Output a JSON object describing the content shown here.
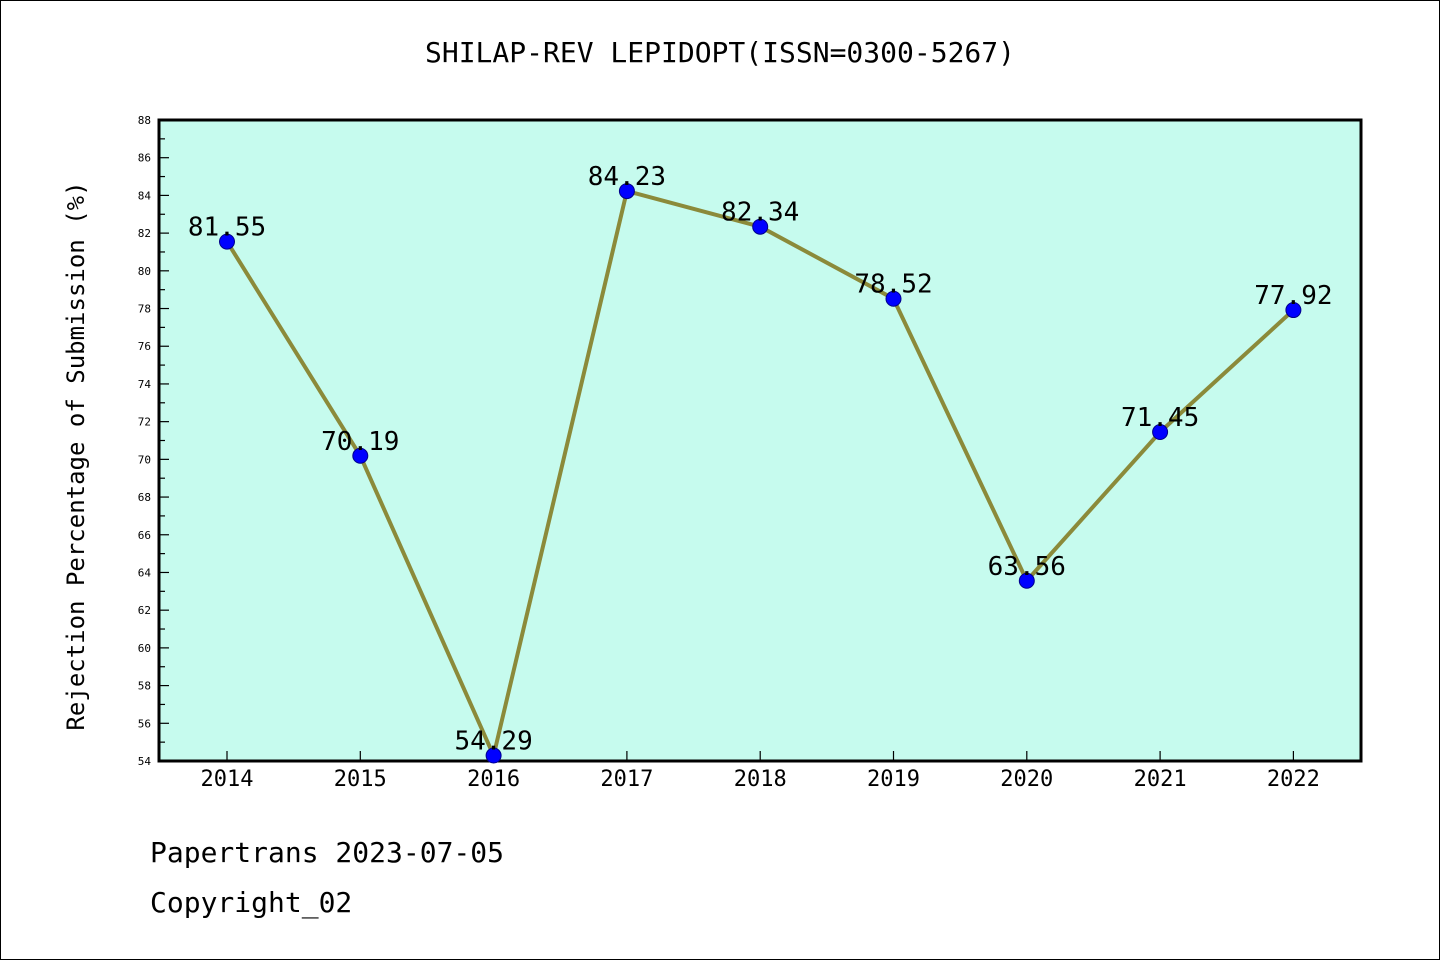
{
  "chart_data": {
    "type": "line",
    "title": "SHILAP-REV LEPIDOPT(ISSN=0300-5267)",
    "ylabel": "Rejection Percentage of Submission (%)",
    "xlabel": "",
    "categories": [
      "2014",
      "2015",
      "2016",
      "2017",
      "2018",
      "2019",
      "2020",
      "2021",
      "2022"
    ],
    "values": [
      81.55,
      70.19,
      54.29,
      84.23,
      82.34,
      78.52,
      63.56,
      71.45,
      77.92
    ],
    "labels": [
      "81.55",
      "70.19",
      "54.29",
      "84.23",
      "82.34",
      "78.52",
      "63.56",
      "71.45",
      "77.92"
    ],
    "ylim": [
      54,
      88
    ],
    "yticks": [
      54,
      56,
      58,
      60,
      62,
      64,
      66,
      68,
      70,
      72,
      74,
      76,
      78,
      80,
      82,
      84,
      86,
      88
    ],
    "grid": false,
    "colors": {
      "plot_bg": "#c6fbee",
      "line": "#8b8a3a",
      "marker": "#0000ff"
    }
  },
  "footer": {
    "line1": "Papertrans 2023-07-05",
    "line2": "Copyright_02"
  }
}
